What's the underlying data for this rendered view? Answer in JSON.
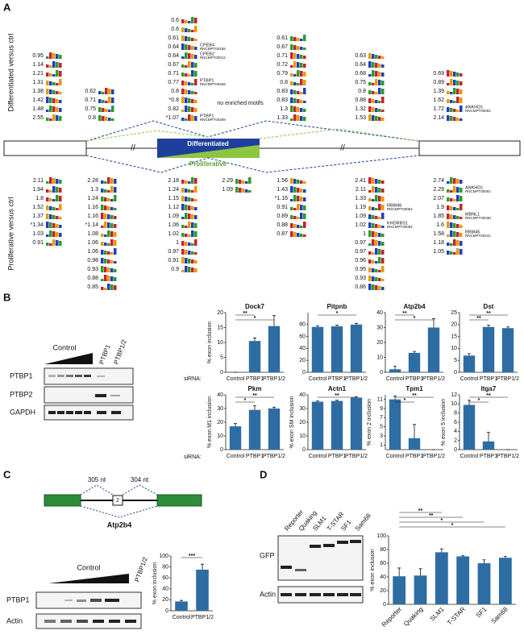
{
  "panel_a": {
    "label": "A",
    "top_label": "Differentiated versus ctrl",
    "bottom_label": "Proliferative versus ctrl",
    "differentiated": "Differentiated",
    "proliferative": "Proliferative",
    "no_motifs": "no enriched motifs",
    "top_columns": [
      [
        {
          "score": "0.95"
        },
        {
          "score": "1.14"
        },
        {
          "score": "1.21"
        },
        {
          "score": "1.31"
        },
        {
          "score": "1.38"
        },
        {
          "score": "1.42"
        },
        {
          "score": "1.48"
        },
        {
          "score": "2.55"
        }
      ],
      [
        {
          "score": "0.62"
        },
        {
          "score": "0.71"
        },
        {
          "score": "0.75"
        },
        {
          "score": "0.8"
        }
      ],
      [
        {
          "score": "0.6"
        },
        {
          "score": "0.6"
        },
        {
          "score": "0.61"
        },
        {
          "score": "0.64",
          "rbp": "CPEB4",
          "id": "RNCMPT00158"
        },
        {
          "score": "0.64",
          "rbp": "CPEB2",
          "id": "RNCMPT00012"
        },
        {
          "score": "0.67"
        },
        {
          "score": "0.71"
        },
        {
          "score": "0.77",
          "rbp": "PTBP1",
          "id": "RNCMPT00268"
        },
        {
          "score": "0.8"
        },
        {
          "score": "*0.8"
        },
        {
          "score": "0.82"
        },
        {
          "score": "*1.07",
          "rbp": "PTBP1",
          "id": "RNCMPT00269"
        }
      ],
      [
        {
          "score": "0.61"
        },
        {
          "score": "0.67"
        },
        {
          "score": "0.71"
        },
        {
          "score": "0.72"
        },
        {
          "score": "0.79"
        },
        {
          "score": "0.8"
        },
        {
          "score": "0.83"
        },
        {
          "score": "0.83"
        },
        {
          "score": "1.3"
        },
        {
          "score": "1.33"
        }
      ],
      [
        {
          "score": "0.63"
        },
        {
          "score": "0.64"
        },
        {
          "score": "0.68"
        },
        {
          "score": "0.75"
        },
        {
          "score": "0.8"
        },
        {
          "score": "0.88"
        },
        {
          "score": "1.32"
        },
        {
          "score": "1.53"
        }
      ],
      [
        {
          "score": "0.69"
        },
        {
          "score": "0.89"
        },
        {
          "score": "1.39"
        },
        {
          "score": "1.62"
        },
        {
          "score": "1.72",
          "rbp": "ANKHD1",
          "id": "RNCMPT00002"
        },
        {
          "score": "2.14"
        }
      ]
    ],
    "bottom_columns": [
      [
        {
          "score": "2.11"
        },
        {
          "score": "1.94"
        },
        {
          "score": "1.8"
        },
        {
          "score": "1.52"
        },
        {
          "score": "1.37"
        },
        {
          "score": "*1.34"
        },
        {
          "score": "1.03"
        },
        {
          "score": "0.91"
        }
      ],
      [
        {
          "score": "2.28"
        },
        {
          "score": "1.3"
        },
        {
          "score": "1.24"
        },
        {
          "score": "1.16"
        },
        {
          "score": "1.16"
        },
        {
          "score": "*1.14"
        },
        {
          "score": "1.08"
        },
        {
          "score": "1.06"
        },
        {
          "score": "1.06"
        },
        {
          "score": "0.98"
        },
        {
          "score": "0.93"
        },
        {
          "score": "0.88"
        },
        {
          "score": "0.85"
        }
      ],
      [
        {
          "score": "2.18"
        },
        {
          "score": "1.24"
        },
        {
          "score": "1.15"
        },
        {
          "score": "1.12"
        },
        {
          "score": "1.09"
        },
        {
          "score": "1.06"
        },
        {
          "score": "1.02"
        },
        {
          "score": "1"
        },
        {
          "score": "0.97"
        },
        {
          "score": "0.91"
        },
        {
          "score": "0.9"
        }
      ],
      [
        {
          "score": "2.29"
        },
        {
          "score": "1.09"
        }
      ],
      [
        {
          "score": "1.56"
        },
        {
          "score": "1.43"
        },
        {
          "score": "*1.16"
        },
        {
          "score": "0.91"
        },
        {
          "score": "0.89"
        },
        {
          "score": "0.88"
        },
        {
          "score": "0.87"
        }
      ],
      [
        {
          "score": "2.41"
        },
        {
          "score": "2.11"
        },
        {
          "score": "1.33"
        },
        {
          "score": "1.19",
          "rbp": "RBM46",
          "id": "RNCMPT00054"
        },
        {
          "score": "1.09"
        },
        {
          "score": "1.02",
          "rbp": "KHDRBS1",
          "id": "RNCMPT00062"
        },
        {
          "score": "1"
        },
        {
          "score": "0.97"
        },
        {
          "score": "0.97"
        },
        {
          "score": "0.96"
        },
        {
          "score": "0.95"
        },
        {
          "score": "0.93"
        },
        {
          "score": "0.86"
        }
      ],
      [
        {
          "score": "2.74"
        },
        {
          "score": "2.29",
          "rbp": "ANKHD1",
          "id": "RNCMPT00002"
        },
        {
          "score": "2.07"
        },
        {
          "score": "1.9"
        },
        {
          "score": "1.85",
          "rbp": "MBNL1",
          "id": "RNCMPT00038"
        },
        {
          "score": "1.6"
        },
        {
          "score": "1.58",
          "rbp": "RBM45",
          "id": "RNCMPT00241"
        },
        {
          "score": "1.18"
        },
        {
          "score": "1.05"
        }
      ]
    ]
  },
  "panel_b": {
    "label": "B",
    "siRNA_label": "siRNA:",
    "blot": {
      "group_label": "Control",
      "lanes": [
        "PTBP1",
        "PTBP1/2"
      ],
      "rows": [
        "PTBP1",
        "PTBP2",
        "GAPDH"
      ]
    }
  },
  "panel_c": {
    "label": "C",
    "gene": "Atp2b4",
    "exon": "2",
    "left_intron": "305 nt",
    "right_intron": "304 nt",
    "blot": {
      "group_label": "Control",
      "lanes": [
        "PTBP1/2"
      ],
      "rows": [
        "PTBP1",
        "Actin"
      ]
    }
  },
  "panel_d": {
    "label": "D",
    "blot": {
      "lanes": [
        "Reporter",
        "Quaking",
        "SLM1",
        "T-STAR",
        "SF1",
        "Sam68"
      ],
      "rows": [
        "GFP",
        "Actin"
      ]
    }
  },
  "chart_data": [
    {
      "type": "bar",
      "title": "Dock7",
      "ylabel": "% exon inclusion",
      "categories": [
        "Control",
        "PTBP1",
        "PTBP1/2"
      ],
      "values": [
        0,
        10.5,
        15.5
      ],
      "errors": [
        0,
        1,
        3.5
      ],
      "ylim": [
        0,
        20
      ],
      "yticks": [
        0,
        5,
        10,
        15,
        20
      ],
      "color": "#2e6da4",
      "significance": [
        {
          "from": 0,
          "to": 1,
          "label": "**"
        },
        {
          "from": 0,
          "to": 2,
          "label": "*"
        }
      ]
    },
    {
      "type": "bar",
      "title": "Pitpnb",
      "ylabel": "",
      "categories": [
        "Control",
        "PTBP1",
        "PTBP1/2"
      ],
      "values": [
        76,
        77,
        80
      ],
      "errors": [
        2,
        2,
        2
      ],
      "ylim": [
        0,
        100
      ],
      "yticks": [
        0,
        20,
        40,
        60,
        80
      ],
      "color": "#2e6da4",
      "significance": [
        {
          "from": 0,
          "to": 2,
          "label": "*"
        }
      ]
    },
    {
      "type": "bar",
      "title": "Atp2b4",
      "ylabel": "",
      "categories": [
        "Control",
        "PTBP1",
        "PTBP1/2"
      ],
      "values": [
        2,
        13,
        30
      ],
      "errors": [
        2,
        1,
        6
      ],
      "ylim": [
        0,
        40
      ],
      "yticks": [
        0,
        10,
        20,
        30,
        40
      ],
      "color": "#2e6da4",
      "significance": [
        {
          "from": 0,
          "to": 1,
          "label": "**"
        },
        {
          "from": 0,
          "to": 2,
          "label": "*"
        }
      ]
    },
    {
      "type": "bar",
      "title": "Dst",
      "ylabel": "",
      "categories": [
        "Control",
        "PTBP1",
        "PTBP1/2"
      ],
      "values": [
        7,
        19,
        18.5
      ],
      "errors": [
        0.8,
        0.8,
        0.5
      ],
      "ylim": [
        0,
        25
      ],
      "yticks": [
        0,
        5,
        10,
        15,
        20,
        25
      ],
      "color": "#2e6da4",
      "significance": [
        {
          "from": 0,
          "to": 2,
          "label": "**"
        },
        {
          "from": 0,
          "to": 1,
          "label": "**"
        }
      ]
    },
    {
      "type": "bar",
      "title": "Pkm",
      "ylabel": "% exon M1 inclusion",
      "categories": [
        "Control",
        "PTBP1",
        "PTBP1/2"
      ],
      "values": [
        17,
        29,
        30
      ],
      "errors": [
        2,
        3,
        1
      ],
      "ylim": [
        0,
        40
      ],
      "yticks": [
        0,
        10,
        20,
        30,
        40
      ],
      "color": "#2e6da4",
      "significance": [
        {
          "from": 0,
          "to": 2,
          "label": "**"
        },
        {
          "from": 0,
          "to": 1,
          "label": "*"
        }
      ]
    },
    {
      "type": "bar",
      "title": "Actn1",
      "ylabel": "% exon SM inclusion",
      "categories": [
        "Control",
        "PTBP1",
        "PTBP1/2"
      ],
      "values": [
        35,
        35.5,
        38
      ],
      "errors": [
        0.5,
        0.5,
        0.5
      ],
      "ylim": [
        0,
        40
      ],
      "yticks": [
        0,
        10,
        20,
        30,
        40
      ],
      "color": "#2e6da4",
      "significance": [
        {
          "from": 0,
          "to": 2,
          "label": "**"
        }
      ]
    },
    {
      "type": "bar",
      "title": "Tpm1",
      "ylabel": "% exon 2 inclusion",
      "categories": [
        "Control",
        "PTBP1",
        "PTBP1/2"
      ],
      "values": [
        11,
        2.5,
        0
      ],
      "errors": [
        0.7,
        3,
        0
      ],
      "ylim": [
        0,
        12
      ],
      "yticks": [
        1,
        3,
        5,
        7,
        9,
        11
      ],
      "color": "#2e6da4",
      "significance": [
        {
          "from": 0,
          "to": 2,
          "label": "**"
        },
        {
          "from": 0,
          "to": 1,
          "label": "*"
        }
      ]
    },
    {
      "type": "bar",
      "title": "Itga7",
      "ylabel": "% exon 5 inclusion",
      "categories": [
        "Control",
        "PTBP1",
        "PTBP1/2"
      ],
      "values": [
        9.8,
        1.8,
        0
      ],
      "errors": [
        1,
        2,
        0
      ],
      "ylim": [
        0,
        12
      ],
      "yticks": [
        0,
        2,
        4,
        6,
        8,
        10,
        12
      ],
      "color": "#2e6da4",
      "significance": [
        {
          "from": 0,
          "to": 2,
          "label": "**"
        },
        {
          "from": 0,
          "to": 1,
          "label": "*"
        }
      ]
    },
    {
      "type": "bar",
      "title": "",
      "ylabel": "% exon inclusion",
      "categories": [
        "Control",
        "PTBP1/2"
      ],
      "values": [
        17,
        75
      ],
      "errors": [
        2,
        10
      ],
      "ylim": [
        0,
        100
      ],
      "yticks": [
        0,
        20,
        40,
        60,
        80,
        100
      ],
      "color": "#2e6da4",
      "significance": [
        {
          "from": 0,
          "to": 1,
          "label": "***"
        }
      ]
    },
    {
      "type": "bar",
      "title": "",
      "ylabel": "% exon inclusion",
      "categories": [
        "Reporter",
        "Quaking",
        "SLM1",
        "T-STAR",
        "SF1",
        "Sam68"
      ],
      "values": [
        41,
        42,
        76,
        70,
        60,
        68
      ],
      "errors": [
        12,
        10,
        5,
        1,
        5,
        2
      ],
      "ylim": [
        0,
        100
      ],
      "yticks": [
        0,
        20,
        40,
        60,
        80,
        100
      ],
      "color": "#2e6da4",
      "significance": [
        {
          "from": 0,
          "to": 2,
          "label": "**"
        },
        {
          "from": 0,
          "to": 3,
          "label": "**"
        },
        {
          "from": 0,
          "to": 4,
          "label": "*"
        },
        {
          "from": 0,
          "to": 5,
          "label": "*"
        }
      ]
    }
  ]
}
